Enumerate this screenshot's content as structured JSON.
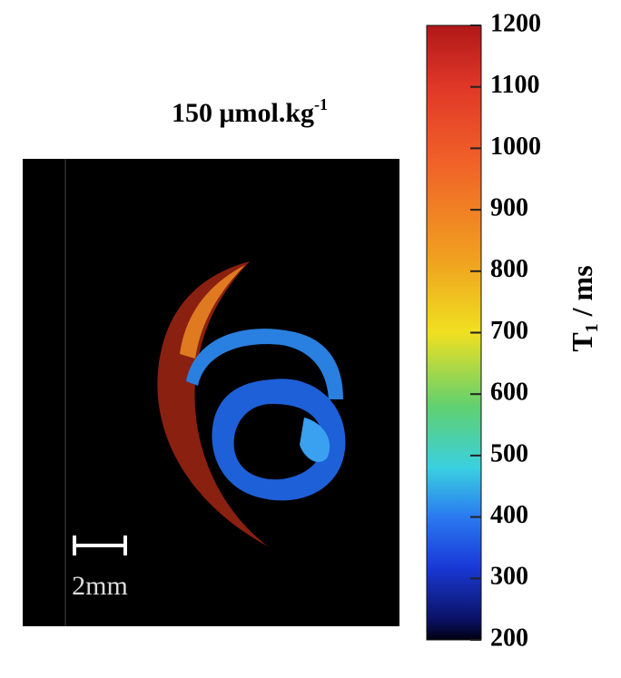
{
  "title": {
    "text": "150 μmol.kg",
    "superscript": "-1"
  },
  "colorbar": {
    "label": {
      "text": "T",
      "subscript": "1",
      "suffix": " / ms"
    },
    "ticks": [
      200,
      300,
      400,
      500,
      600,
      700,
      800,
      900,
      1000,
      1100,
      1200
    ]
  },
  "scale_bar": {
    "label": "2mm"
  }
}
